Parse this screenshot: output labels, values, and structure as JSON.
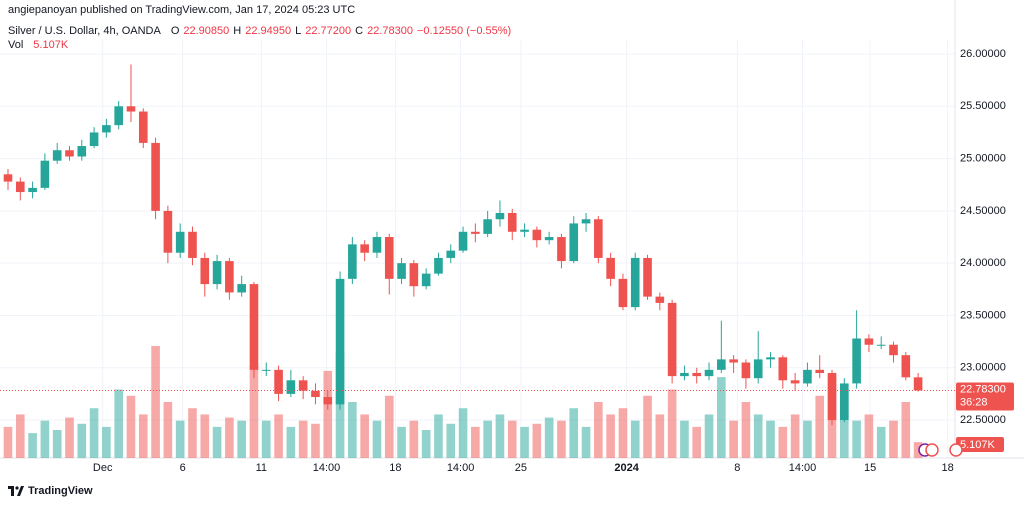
{
  "header": {
    "published": "angiepanoyan published on TradingView.com, Jan 17, 2024 05:23 UTC"
  },
  "legend": {
    "symbol": "Silver / U.S. Dollar, 4h, OANDA",
    "o_label": "O",
    "o": "22.90850",
    "h_label": "H",
    "h": "22.94950",
    "l_label": "L",
    "l": "22.77200",
    "c_label": "C",
    "c": "22.78300",
    "change": "−0.12550 (−0.55%)",
    "vol_label": "Vol",
    "vol": "5.107K"
  },
  "footer": {
    "brand": "TradingView"
  },
  "chart_data": {
    "type": "candlestick",
    "up_color": "#26a69a",
    "down_color": "#ef5350",
    "grid": true,
    "xlim": [
      -0.65,
      77
    ],
    "xticks": [
      {
        "value": 7.7,
        "label": "Dec"
      },
      {
        "value": 14.2,
        "label": "6"
      },
      {
        "value": 20.6,
        "label": "11"
      },
      {
        "value": 25.9,
        "label": "14:00"
      },
      {
        "value": 31.5,
        "label": "18"
      },
      {
        "value": 36.8,
        "label": "14:00"
      },
      {
        "value": 41.7,
        "label": "25"
      },
      {
        "value": 50.3,
        "label": "2024"
      },
      {
        "value": 59.3,
        "label": "8"
      },
      {
        "value": 64.6,
        "label": "14:00"
      },
      {
        "value": 70.1,
        "label": "15"
      },
      {
        "value": 76.4,
        "label": "18"
      }
    ],
    "ylim": [
      22.137,
      26.134
    ],
    "yticks": [
      {
        "value": 22.5,
        "label": "22.50000"
      },
      {
        "value": 23,
        "label": "23.00000"
      },
      {
        "value": 23.5,
        "label": "23.50000"
      },
      {
        "value": 24,
        "label": "24.00000"
      },
      {
        "value": 24.5,
        "label": "24.50000"
      },
      {
        "value": 25,
        "label": "25.00000"
      },
      {
        "value": 25.5,
        "label": "25.50000"
      },
      {
        "value": 26,
        "label": "26.00000"
      }
    ],
    "last_price": {
      "value": 22.783,
      "label": "22.78300"
    },
    "countdown": "36:28",
    "last_volume": "5.107K",
    "open": [
      24.85,
      24.78,
      24.68,
      24.72,
      24.98,
      25.08,
      25.02,
      25.12,
      25.25,
      25.32,
      25.5,
      25.45,
      25.15,
      24.5,
      24.1,
      24.3,
      24.05,
      23.8,
      24.02,
      23.72,
      23.8,
      22.98,
      22.98,
      22.75,
      22.88,
      22.78,
      22.72,
      22.65,
      23.85,
      24.18,
      24.1,
      24.25,
      23.85,
      24.0,
      23.78,
      23.9,
      24.05,
      24.12,
      24.3,
      24.28,
      24.42,
      24.48,
      24.3,
      24.32,
      24.22,
      24.25,
      24.02,
      24.38,
      24.42,
      24.05,
      23.85,
      23.58,
      24.05,
      23.68,
      23.62,
      22.92,
      22.95,
      22.92,
      22.98,
      23.08,
      23.05,
      22.9,
      23.08,
      23.1,
      22.88,
      22.85,
      22.98,
      22.95,
      22.5,
      22.85,
      23.28,
      23.22,
      23.22,
      23.12,
      22.9085
    ],
    "high": [
      24.9,
      24.82,
      24.78,
      25.05,
      25.15,
      25.12,
      25.18,
      25.3,
      25.38,
      25.55,
      25.9,
      25.48,
      25.2,
      24.55,
      24.38,
      24.35,
      24.1,
      24.08,
      24.05,
      23.88,
      23.82,
      23.05,
      23.02,
      22.98,
      22.92,
      22.85,
      22.78,
      23.92,
      24.25,
      24.22,
      24.3,
      24.28,
      24.05,
      24.03,
      23.95,
      24.1,
      24.18,
      24.35,
      24.38,
      24.5,
      24.6,
      24.52,
      24.38,
      24.35,
      24.3,
      24.28,
      24.45,
      24.48,
      24.45,
      24.1,
      23.9,
      24.1,
      24.08,
      23.72,
      23.65,
      23.02,
      23.0,
      23.05,
      23.45,
      23.12,
      23.08,
      23.35,
      23.15,
      23.12,
      22.95,
      23.05,
      23.12,
      22.98,
      22.9,
      23.55,
      23.32,
      23.3,
      23.25,
      23.15,
      22.9495
    ],
    "low": [
      24.7,
      24.6,
      24.62,
      24.7,
      24.95,
      24.98,
      24.98,
      25.1,
      25.2,
      25.28,
      25.35,
      25.1,
      24.42,
      24.0,
      24.05,
      23.98,
      23.68,
      23.75,
      23.65,
      23.68,
      22.9,
      22.92,
      22.68,
      22.72,
      22.7,
      22.65,
      22.6,
      22.6,
      23.8,
      24.02,
      24.05,
      23.7,
      23.8,
      23.68,
      23.75,
      23.88,
      24.0,
      24.1,
      24.2,
      24.25,
      24.35,
      24.22,
      24.25,
      24.15,
      24.18,
      23.95,
      24.0,
      24.3,
      24.0,
      23.78,
      23.55,
      23.55,
      23.65,
      23.55,
      22.85,
      22.88,
      22.85,
      22.88,
      22.95,
      22.95,
      22.8,
      22.85,
      23.0,
      22.8,
      22.78,
      22.82,
      22.9,
      22.45,
      22.48,
      22.8,
      23.15,
      23.18,
      23.05,
      22.88,
      22.772
    ],
    "close": [
      24.78,
      24.68,
      24.72,
      24.98,
      25.08,
      25.02,
      25.12,
      25.25,
      25.32,
      25.5,
      25.45,
      25.15,
      24.5,
      24.1,
      24.3,
      24.05,
      23.8,
      24.02,
      23.72,
      23.8,
      22.98,
      22.98,
      22.75,
      22.88,
      22.78,
      22.72,
      22.65,
      23.85,
      24.18,
      24.1,
      24.25,
      23.85,
      24.0,
      23.78,
      23.9,
      24.05,
      24.12,
      24.3,
      24.28,
      24.42,
      24.48,
      24.3,
      24.32,
      24.22,
      24.25,
      24.02,
      24.38,
      24.42,
      24.05,
      23.85,
      23.58,
      24.05,
      23.68,
      23.62,
      22.92,
      22.95,
      22.92,
      22.98,
      23.08,
      23.05,
      22.9,
      23.08,
      23.1,
      22.88,
      22.85,
      22.98,
      22.95,
      22.5,
      22.85,
      23.28,
      23.22,
      23.22,
      23.12,
      22.9085,
      22.783
    ],
    "volume": [
      10,
      14,
      8,
      12,
      9,
      13,
      11,
      16,
      10,
      22,
      20,
      14,
      36,
      18,
      12,
      16,
      14,
      10,
      13,
      12,
      30,
      12,
      14,
      10,
      12,
      11,
      28,
      34,
      18,
      14,
      12,
      20,
      10,
      12,
      9,
      14,
      11,
      16,
      10,
      12,
      14,
      12,
      10,
      11,
      13,
      12,
      16,
      10,
      18,
      14,
      16,
      12,
      20,
      14,
      22,
      12,
      10,
      14,
      26,
      12,
      18,
      14,
      12,
      10,
      14,
      12,
      20,
      26,
      22,
      12,
      14,
      10,
      12,
      18,
      5.107
    ]
  }
}
